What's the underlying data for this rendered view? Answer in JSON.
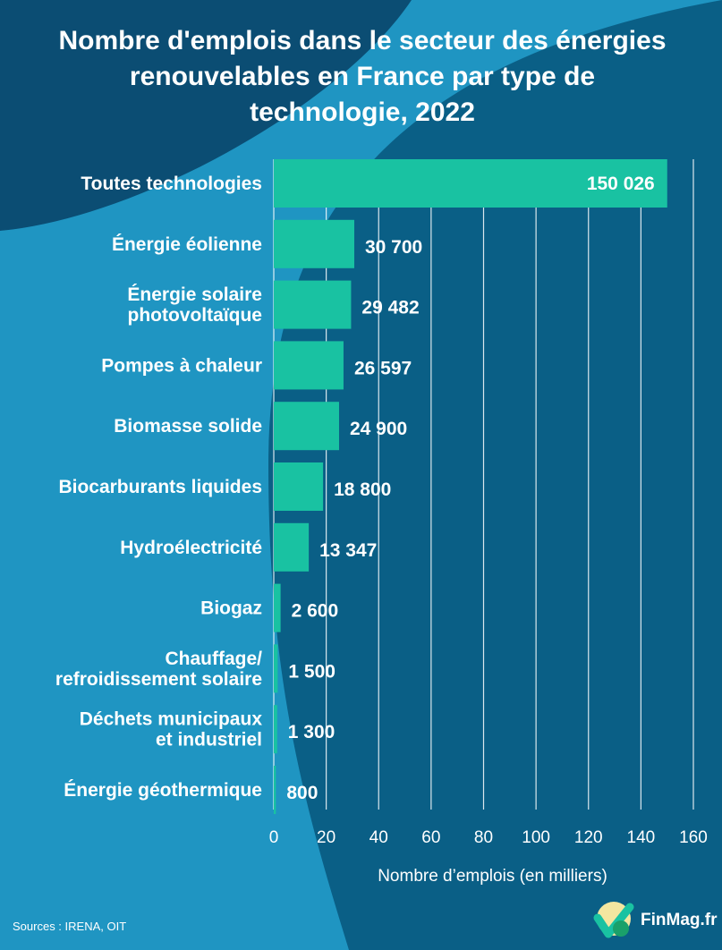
{
  "title": "Nombre d'emplois dans le secteur des énergies renouvelables en France par type de technologie, 2022",
  "source": "Sources : IRENA, OIT",
  "brand": "FinMag.fr",
  "colors": {
    "bar": "#19c2a2",
    "background_dark": "#0a5f86",
    "background_light": "#1f95c2",
    "text": "#ffffff"
  },
  "chart_data": {
    "type": "bar",
    "orientation": "horizontal",
    "title": "Nombre d'emplois dans le secteur des énergies renouvelables en France par type de technologie, 2022",
    "xlabel": "Nombre d’emplois (en milliers)",
    "ylabel": "",
    "xlim": [
      0,
      160
    ],
    "xticks": [
      0,
      20,
      40,
      60,
      80,
      100,
      120,
      140,
      160
    ],
    "grid": "vertical",
    "categories": [
      [
        "Toutes technologies"
      ],
      [
        "Énergie éolienne"
      ],
      [
        "Énergie solaire",
        "photovoltaïque"
      ],
      [
        "Pompes à chaleur"
      ],
      [
        "Biomasse solide"
      ],
      [
        "Biocarburants liquides"
      ],
      [
        "Hydroélectricité"
      ],
      [
        "Biogaz"
      ],
      [
        "Chauffage/",
        "refroidissement solaire"
      ],
      [
        "Déchets municipaux",
        "et industriel"
      ],
      [
        "Énergie géothermique"
      ]
    ],
    "values": [
      150.026,
      30.7,
      29.482,
      26.597,
      24.9,
      18.8,
      13.347,
      2.6,
      1.5,
      1.3,
      0.8
    ],
    "value_labels": [
      "150 026",
      "30 700",
      "29 482",
      "26 597",
      "24 900",
      "18 800",
      "13 347",
      "2 600",
      "1 500",
      "1 300",
      "800"
    ]
  }
}
